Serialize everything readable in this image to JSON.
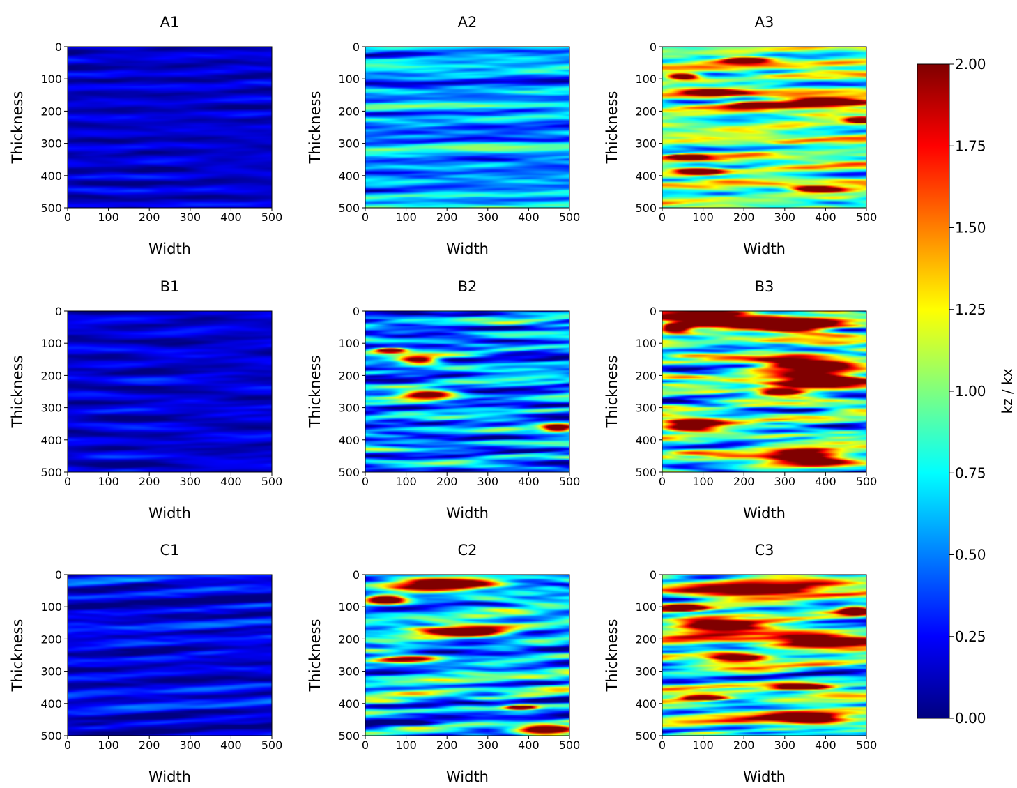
{
  "figure": {
    "colormap": "jet",
    "colors": {
      "jet_stops": [
        "#00007f",
        "#0000ff",
        "#007fff",
        "#00ffff",
        "#7fff7f",
        "#ffff00",
        "#ff7f00",
        "#ff0000",
        "#7f0000"
      ],
      "axis": "#000000",
      "background": "#ffffff"
    },
    "colorbar": {
      "label": "kz / kx",
      "range": [
        0,
        2
      ],
      "ticks": [
        "0.00",
        "0.25",
        "0.50",
        "0.75",
        "1.00",
        "1.25",
        "1.50",
        "1.75",
        "2.00"
      ]
    }
  },
  "chart_data": [
    {
      "type": "heatmap",
      "title": "A1",
      "xlabel": "Width",
      "ylabel": "Thickness",
      "xlim": [
        0,
        500
      ],
      "ylim": [
        500,
        0
      ],
      "xticks": [
        "0",
        "100",
        "200",
        "300",
        "400",
        "500"
      ],
      "yticks": [
        "0",
        "100",
        "200",
        "300",
        "400",
        "500"
      ],
      "value_range": [
        0,
        2
      ],
      "mean": 0.15,
      "amplitude": 0.12,
      "high_patches": []
    },
    {
      "type": "heatmap",
      "title": "A2",
      "xlabel": "Width",
      "ylabel": "Thickness",
      "xlim": [
        0,
        500
      ],
      "ylim": [
        500,
        0
      ],
      "xticks": [
        "0",
        "100",
        "200",
        "300",
        "400",
        "500"
      ],
      "yticks": [
        "0",
        "100",
        "200",
        "300",
        "400",
        "500"
      ],
      "value_range": [
        0,
        2
      ],
      "mean": 0.55,
      "amplitude": 0.35,
      "high_patches": []
    },
    {
      "type": "heatmap",
      "title": "A3",
      "xlabel": "Width",
      "ylabel": "Thickness",
      "xlim": [
        0,
        500
      ],
      "ylim": [
        500,
        0
      ],
      "xticks": [
        "0",
        "100",
        "200",
        "300",
        "400",
        "500"
      ],
      "yticks": [
        "0",
        "100",
        "200",
        "300",
        "400",
        "500"
      ],
      "value_range": [
        0,
        2
      ],
      "mean": 1.0,
      "amplitude": 0.45,
      "high_patches": [
        [
          50,
          90,
          40,
          10
        ],
        [
          120,
          140,
          70,
          10
        ],
        [
          400,
          170,
          110,
          15
        ],
        [
          240,
          180,
          80,
          10
        ],
        [
          490,
          225,
          40,
          10
        ],
        [
          60,
          340,
          40,
          8
        ],
        [
          90,
          385,
          60,
          10
        ],
        [
          380,
          440,
          60,
          10
        ],
        [
          200,
          40,
          60,
          10
        ]
      ]
    },
    {
      "type": "heatmap",
      "title": "B1",
      "xlabel": "Width",
      "ylabel": "Thickness",
      "xlim": [
        0,
        500
      ],
      "ylim": [
        500,
        0
      ],
      "xticks": [
        "0",
        "100",
        "200",
        "300",
        "400",
        "500"
      ],
      "yticks": [
        "0",
        "100",
        "200",
        "300",
        "400",
        "500"
      ],
      "value_range": [
        0,
        2
      ],
      "mean": 0.16,
      "amplitude": 0.13,
      "high_patches": []
    },
    {
      "type": "heatmap",
      "title": "B2",
      "xlabel": "Width",
      "ylabel": "Thickness",
      "xlim": [
        0,
        500
      ],
      "ylim": [
        500,
        0
      ],
      "xticks": [
        "0",
        "100",
        "200",
        "300",
        "400",
        "500"
      ],
      "yticks": [
        "0",
        "100",
        "200",
        "300",
        "400",
        "500"
      ],
      "value_range": [
        0,
        2
      ],
      "mean": 0.5,
      "amplitude": 0.5,
      "high_patches": [
        [
          130,
          150,
          50,
          12
        ],
        [
          150,
          258,
          70,
          15
        ],
        [
          470,
          360,
          40,
          12
        ],
        [
          60,
          120,
          40,
          8
        ]
      ]
    },
    {
      "type": "heatmap",
      "title": "B3",
      "xlabel": "Width",
      "ylabel": "Thickness",
      "xlim": [
        0,
        500
      ],
      "ylim": [
        500,
        0
      ],
      "xticks": [
        "0",
        "100",
        "200",
        "300",
        "400",
        "500"
      ],
      "yticks": [
        "0",
        "100",
        "200",
        "300",
        "400",
        "500"
      ],
      "value_range": [
        0,
        2
      ],
      "mean": 0.8,
      "amplitude": 0.55,
      "high_patches": [
        [
          120,
          25,
          120,
          25
        ],
        [
          330,
          40,
          120,
          30
        ],
        [
          30,
          50,
          40,
          15
        ],
        [
          350,
          160,
          130,
          25
        ],
        [
          380,
          215,
          120,
          25
        ],
        [
          70,
          355,
          80,
          20
        ],
        [
          350,
          450,
          110,
          25
        ],
        [
          290,
          250,
          60,
          12
        ]
      ]
    },
    {
      "type": "heatmap",
      "title": "C1",
      "xlabel": "Width",
      "ylabel": "Thickness",
      "xlim": [
        0,
        500
      ],
      "ylim": [
        500,
        0
      ],
      "xticks": [
        "0",
        "100",
        "200",
        "300",
        "400",
        "500"
      ],
      "yticks": [
        "0",
        "100",
        "200",
        "300",
        "400",
        "500"
      ],
      "value_range": [
        0,
        2
      ],
      "mean": 0.2,
      "amplitude": 0.2,
      "high_patches": []
    },
    {
      "type": "heatmap",
      "title": "C2",
      "xlabel": "Width",
      "ylabel": "Thickness",
      "xlim": [
        0,
        500
      ],
      "ylim": [
        500,
        0
      ],
      "xticks": [
        "0",
        "100",
        "200",
        "300",
        "400",
        "500"
      ],
      "yticks": [
        "0",
        "100",
        "200",
        "300",
        "400",
        "500"
      ],
      "value_range": [
        0,
        2
      ],
      "mean": 0.6,
      "amplitude": 0.55,
      "high_patches": [
        [
          200,
          30,
          140,
          25
        ],
        [
          50,
          75,
          50,
          15
        ],
        [
          250,
          175,
          110,
          18
        ],
        [
          100,
          260,
          80,
          12
        ],
        [
          440,
          480,
          70,
          18
        ],
        [
          380,
          410,
          40,
          8
        ]
      ]
    },
    {
      "type": "heatmap",
      "title": "C3",
      "xlabel": "Width",
      "ylabel": "Thickness",
      "xlim": [
        0,
        500
      ],
      "ylim": [
        500,
        0
      ],
      "xticks": [
        "0",
        "100",
        "200",
        "300",
        "400",
        "500"
      ],
      "yticks": [
        "0",
        "100",
        "200",
        "300",
        "400",
        "500"
      ],
      "value_range": [
        0,
        2
      ],
      "mean": 0.85,
      "amplitude": 0.6,
      "high_patches": [
        [
          250,
          50,
          180,
          25
        ],
        [
          470,
          110,
          40,
          15
        ],
        [
          130,
          155,
          120,
          25
        ],
        [
          380,
          205,
          130,
          20
        ],
        [
          180,
          255,
          80,
          15
        ],
        [
          340,
          345,
          80,
          10
        ],
        [
          350,
          445,
          100,
          20
        ],
        [
          100,
          380,
          60,
          10
        ],
        [
          50,
          100,
          50,
          10
        ]
      ]
    }
  ]
}
